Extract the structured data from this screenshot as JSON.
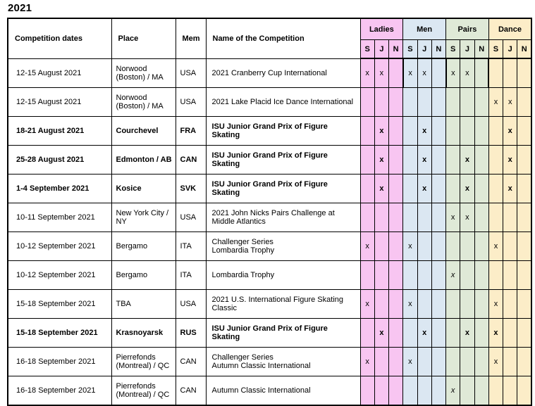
{
  "title": "2021",
  "table": {
    "headers": {
      "competition_dates": "Competition dates",
      "place": "Place",
      "mem": "Mem",
      "name": "Name of the Competition",
      "groups": [
        {
          "label": "Ladies",
          "color": "#F8C5F1"
        },
        {
          "label": "Men",
          "color": "#DBE7F2"
        },
        {
          "label": "Pairs",
          "color": "#DFE9D7"
        },
        {
          "label": "Dance",
          "color": "#FCEDC8"
        }
      ],
      "levels": [
        "S",
        "J",
        "N"
      ]
    },
    "rows": [
      {
        "dates": "12-15 August 2021",
        "place": "Norwood (Boston) / MA",
        "mem": "USA",
        "name": "2021 Cranberry Cup International",
        "bold": false,
        "mark_style": "normal",
        "dates_separator": false,
        "marks": [
          "x",
          "x",
          "",
          "x",
          "x",
          "",
          "x",
          "x",
          "",
          "",
          "",
          ""
        ]
      },
      {
        "dates": "12-15 August 2021",
        "place": "Norwood (Boston) / MA",
        "mem": "USA",
        "name": "2021 Lake Placid Ice Dance International",
        "bold": false,
        "mark_style": "normal",
        "dates_separator": false,
        "marks": [
          "",
          "",
          "",
          "",
          "",
          "",
          "",
          "",
          "",
          "x",
          "x",
          ""
        ]
      },
      {
        "dates": "18-21 August 2021",
        "place": "Courchevel",
        "mem": "FRA",
        "name": "ISU Junior Grand Prix of Figure Skating",
        "bold": true,
        "mark_style": "bold",
        "dates_separator": false,
        "marks": [
          "",
          "x",
          "",
          "",
          "x",
          "",
          "",
          "",
          "",
          "",
          "x",
          ""
        ]
      },
      {
        "dates": "25-28 August 2021",
        "place": "Edmonton / AB",
        "mem": "CAN",
        "name": "ISU Junior Grand Prix of Figure Skating",
        "bold": true,
        "mark_style": "bold",
        "dates_separator": false,
        "marks": [
          "",
          "x",
          "",
          "",
          "x",
          "",
          "",
          "x",
          "",
          "",
          "x",
          ""
        ]
      },
      {
        "dates": "1-4 September 2021",
        "place": "Kosice",
        "mem": "SVK",
        "name": "ISU Junior Grand Prix of Figure Skating",
        "bold": true,
        "mark_style": "bold",
        "dates_separator": false,
        "marks": [
          "",
          "x",
          "",
          "",
          "x",
          "",
          "",
          "x",
          "",
          "",
          "x",
          ""
        ]
      },
      {
        "dates": "10-11 September 2021",
        "place": "New York City / NY",
        "mem": "USA",
        "name": "2021 John Nicks Pairs Challenge at Middle Atlantics",
        "bold": false,
        "mark_style": "normal",
        "dates_separator": true,
        "marks": [
          "",
          "",
          "",
          "",
          "",
          "",
          "x",
          "x",
          "",
          "",
          "",
          ""
        ]
      },
      {
        "dates": "10-12 September 2021",
        "place": "Bergamo",
        "mem": "ITA",
        "name": "Challenger Series\nLombardia Trophy",
        "bold": false,
        "mark_style": "normal",
        "dates_separator": false,
        "marks": [
          "x",
          "",
          "",
          "x",
          "",
          "",
          "",
          "",
          "",
          "x",
          "",
          ""
        ]
      },
      {
        "dates": "10-12 September 2021",
        "place": "Bergamo",
        "mem": "ITA",
        "name": "Lombardia Trophy",
        "bold": false,
        "mark_style": "italic",
        "dates_separator": false,
        "marks": [
          "",
          "",
          "",
          "",
          "",
          "",
          "x",
          "",
          "",
          "",
          "",
          ""
        ]
      },
      {
        "dates": "15-18 September 2021",
        "place": "TBA",
        "mem": "USA",
        "name": "2021 U.S. International Figure Skating Classic",
        "bold": false,
        "mark_style": "normal",
        "dates_separator": true,
        "marks": [
          "x",
          "",
          "",
          "x",
          "",
          "",
          "",
          "",
          "",
          "x",
          "",
          ""
        ]
      },
      {
        "dates": "15-18 September 2021",
        "place": "Krasnoyarsk",
        "mem": "RUS",
        "name": "ISU Junior Grand Prix of Figure Skating",
        "bold": true,
        "mark_style": "bold",
        "dates_separator": false,
        "marks": [
          "",
          "x",
          "",
          "",
          "x",
          "",
          "",
          "x",
          "",
          "x",
          "",
          ""
        ]
      },
      {
        "dates": "16-18 September 2021",
        "place": "Pierrefonds (Montreal) / QC",
        "mem": "CAN",
        "name": "Challenger Series\nAutumn Classic International",
        "bold": false,
        "mark_style": "normal",
        "dates_separator": false,
        "marks": [
          "x",
          "",
          "",
          "x",
          "",
          "",
          "",
          "",
          "",
          "x",
          "",
          ""
        ]
      },
      {
        "dates": "16-18 September 2021",
        "place": "Pierrefonds (Montreal) / QC",
        "mem": "CAN",
        "name": "Autumn Classic International",
        "bold": false,
        "mark_style": "italic",
        "dates_separator": false,
        "marks": [
          "",
          "",
          "",
          "",
          "",
          "",
          "x",
          "",
          "",
          "",
          "",
          ""
        ]
      }
    ]
  }
}
